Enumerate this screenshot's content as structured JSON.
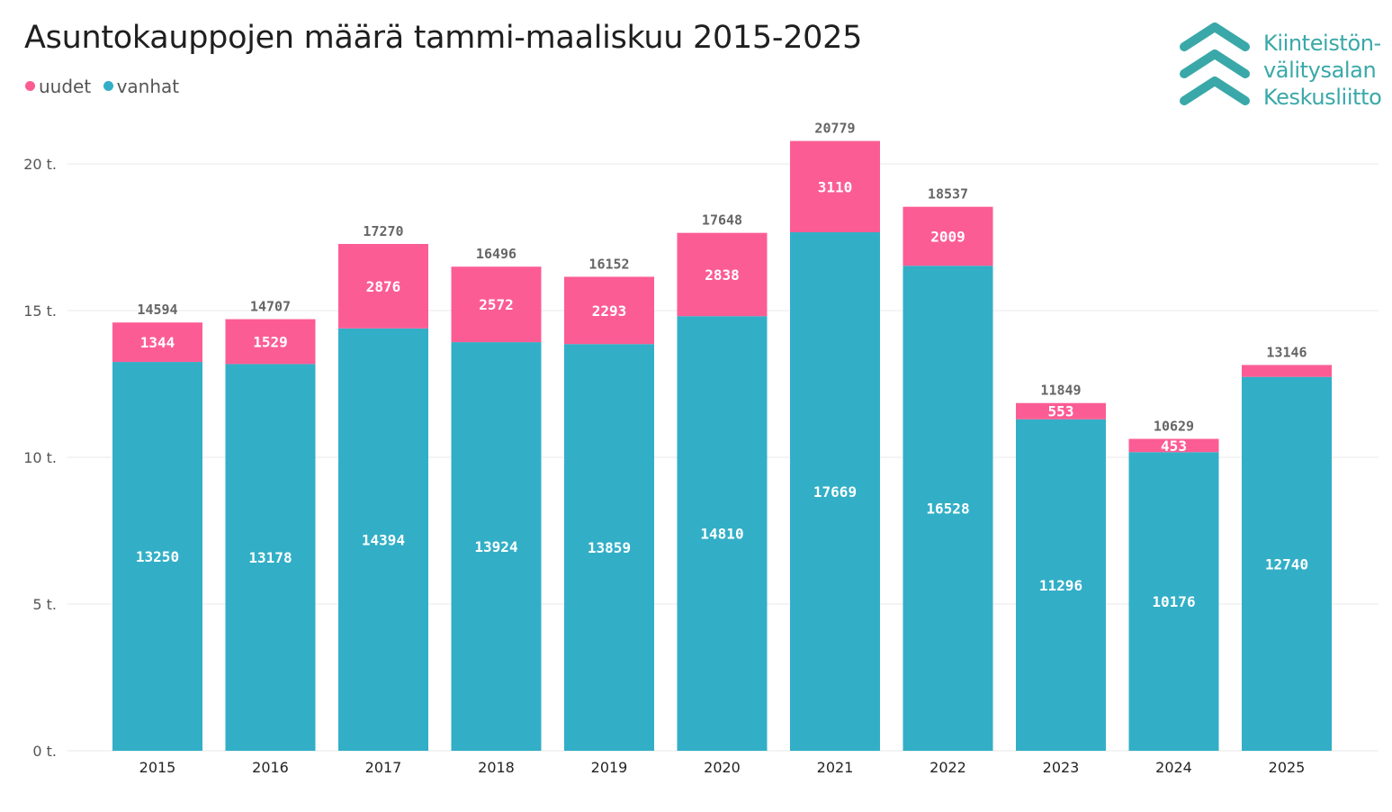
{
  "title": "Asuntokauppojen määrä tammi-maaliskuu 2015-2025",
  "legend": [
    {
      "label": "uudet",
      "color": "#fc5c94"
    },
    {
      "label": "vanhat",
      "color": "#32afc7"
    }
  ],
  "logo": {
    "line1": "Kiinteistön-",
    "line2": "välitysalan",
    "line3": "Keskusliitto",
    "color": "#3aa8a8",
    "icon": "triple-chevron-up-icon"
  },
  "chart_data": {
    "type": "bar",
    "stacked": true,
    "categories": [
      "2015",
      "2016",
      "2017",
      "2018",
      "2019",
      "2020",
      "2021",
      "2022",
      "2023",
      "2024",
      "2025"
    ],
    "series": [
      {
        "name": "vanhat",
        "color": "#32afc7",
        "values": [
          13250,
          13178,
          14394,
          13924,
          13859,
          14810,
          17669,
          16528,
          11296,
          10176,
          12740
        ]
      },
      {
        "name": "uudet",
        "color": "#fc5c94",
        "values": [
          1344,
          1529,
          2876,
          2572,
          2293,
          2838,
          3110,
          2009,
          553,
          453,
          406
        ]
      }
    ],
    "uudet_labels": [
      "1344",
      "1529",
      "2876",
      "2572",
      "2293",
      "2838",
      "3110",
      "2009",
      "553",
      "453",
      ""
    ],
    "totals": [
      14594,
      14707,
      17270,
      16496,
      16152,
      17648,
      20779,
      18537,
      11849,
      10629,
      13146
    ],
    "yticks": [
      {
        "value": 0,
        "label": "0 t."
      },
      {
        "value": 5000,
        "label": "5 t."
      },
      {
        "value": 10000,
        "label": "10 t."
      },
      {
        "value": 15000,
        "label": "15 t."
      },
      {
        "value": 20000,
        "label": "20 t."
      }
    ],
    "ylim": [
      0,
      20000
    ],
    "grid": true,
    "legend_position": "top-left"
  }
}
